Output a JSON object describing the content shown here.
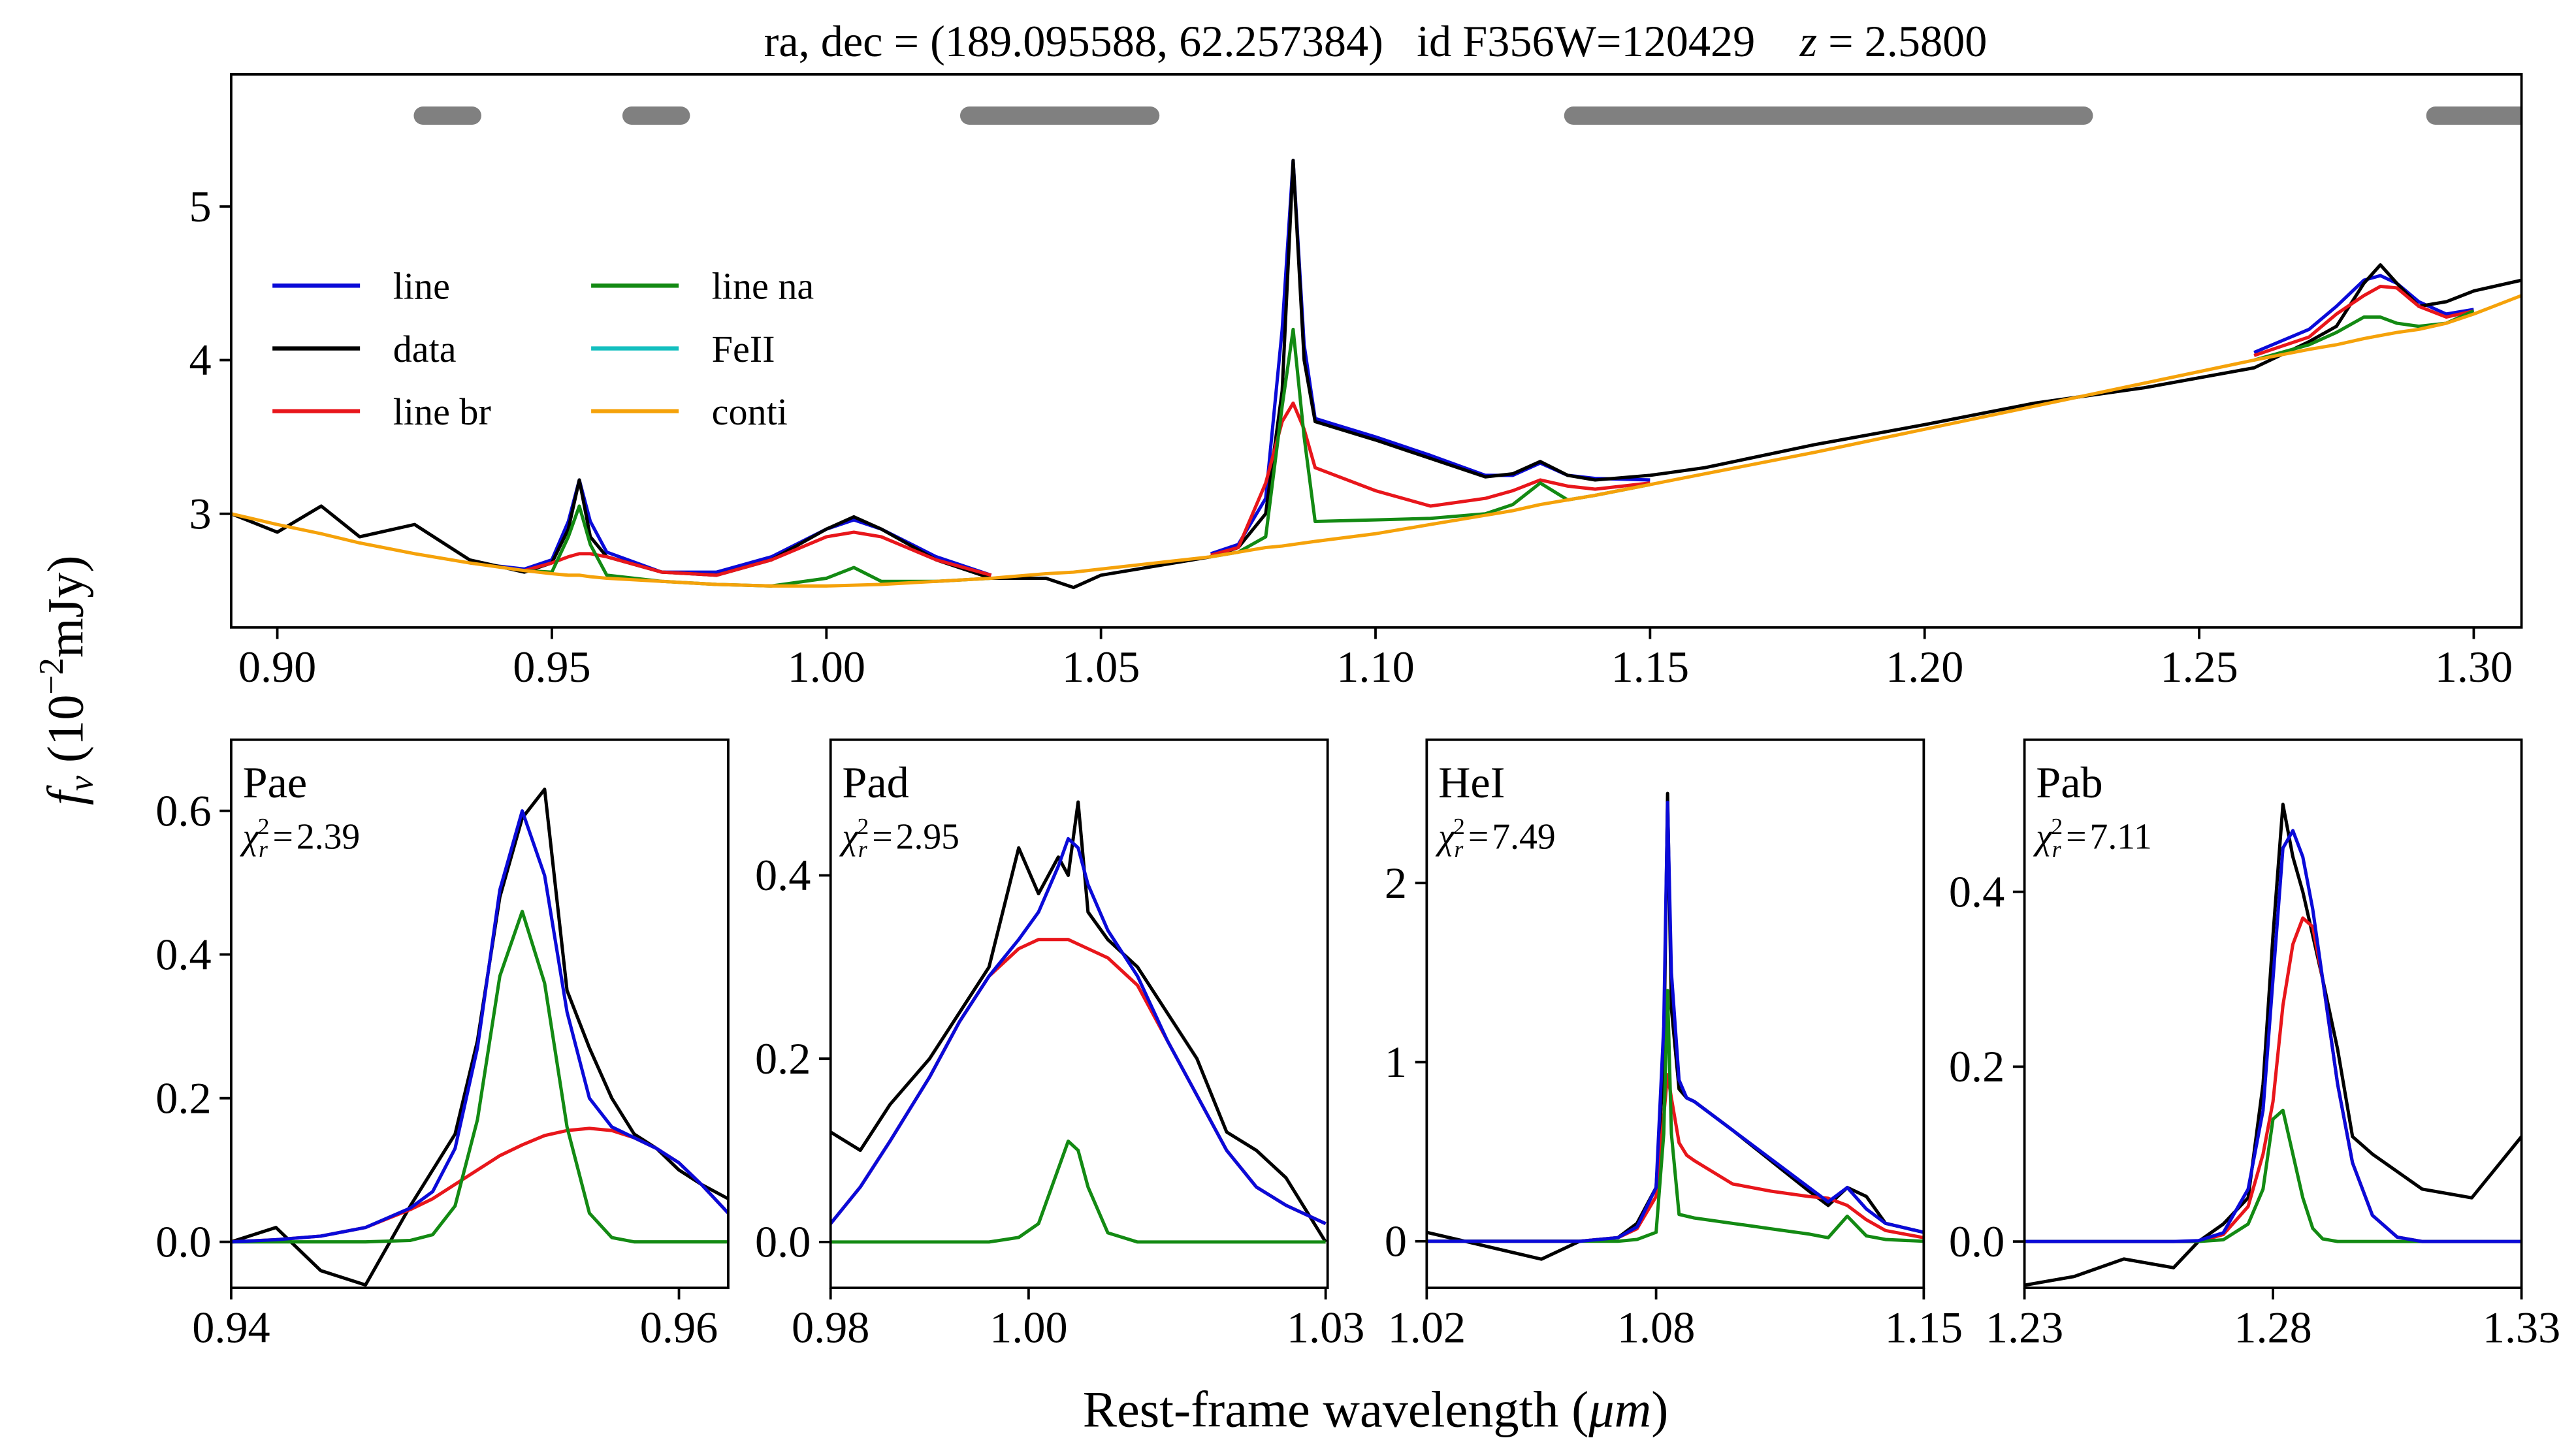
{
  "figure": {
    "title": [
      "ra, dec = (189.095588, 62.257384)   id F356W=120429    ",
      "z",
      " = 2.5800"
    ],
    "xlabel": [
      "Rest-frame wavelength (",
      "μm",
      ")"
    ],
    "ylabel": [
      "f",
      "ν",
      " (10",
      "−2",
      "mJy)"
    ]
  },
  "chart_data": [
    {
      "type": "line",
      "xlim": [
        0.8916,
        1.3087
      ],
      "ylim": [
        2.26,
        5.86
      ],
      "xticks": [
        {
          "value": 0.9,
          "label": "0.90"
        },
        0.95,
        {
          "value": 1.0,
          "label": "1.00"
        },
        1.05,
        {
          "value": 1.1,
          "label": "1.10"
        },
        1.15,
        {
          "value": 1.2,
          "label": "1.20"
        },
        1.25,
        {
          "value": 1.3,
          "label": "1.30"
        }
      ],
      "yticks": [
        3,
        4,
        5
      ],
      "legend": "upper left",
      "legend_ncol": 2,
      "windows": [
        [
          0.9265,
          0.9355
        ],
        [
          0.9645,
          0.9735
        ],
        [
          1.026,
          1.059
        ],
        [
          1.136,
          1.229
        ],
        [
          1.293,
          1.3087
        ]
      ],
      "window_color": "#808080",
      "x": [
        0.8916,
        0.9,
        0.908,
        0.915,
        0.925,
        0.935,
        0.945,
        0.95,
        0.953,
        0.955,
        0.957,
        0.96,
        0.97,
        0.98,
        0.99,
        1.0,
        1.005,
        1.01,
        1.02,
        1.03,
        1.04,
        1.045,
        1.05,
        1.06,
        1.07,
        1.075,
        1.08,
        1.083,
        1.085,
        1.087,
        1.089,
        1.1,
        1.11,
        1.12,
        1.125,
        1.13,
        1.135,
        1.14,
        1.15,
        1.16,
        1.18,
        1.2,
        1.22,
        1.24,
        1.26,
        1.27,
        1.275,
        1.28,
        1.283,
        1.286,
        1.29,
        1.295,
        1.3,
        1.3087
      ],
      "series": [
        {
          "name": "line",
          "color": "#0a0ad8",
          "values": [
            null,
            null,
            null,
            null,
            null,
            2.68,
            2.64,
            2.7,
            2.95,
            3.22,
            2.95,
            2.75,
            2.62,
            2.62,
            2.72,
            2.9,
            2.96,
            2.9,
            2.72,
            2.6,
            null,
            null,
            null,
            null,
            2.74,
            2.8,
            3.1,
            4.2,
            5.3,
            4.1,
            3.62,
            3.5,
            3.38,
            3.25,
            3.25,
            3.33,
            3.25,
            3.23,
            3.22,
            null,
            null,
            null,
            null,
            null,
            4.05,
            4.2,
            4.35,
            4.52,
            4.55,
            4.5,
            4.38,
            4.3,
            4.33,
            null
          ]
        },
        {
          "name": "data",
          "color": "#000000",
          "values": [
            3.0,
            2.88,
            3.05,
            2.85,
            2.93,
            2.7,
            2.62,
            2.68,
            2.9,
            3.22,
            2.85,
            2.72,
            2.62,
            2.6,
            2.7,
            2.9,
            2.98,
            2.9,
            2.7,
            2.58,
            2.58,
            2.52,
            2.6,
            2.66,
            2.72,
            2.78,
            3.0,
            3.8,
            5.3,
            4.0,
            3.6,
            3.48,
            3.36,
            3.24,
            3.26,
            3.34,
            3.25,
            3.22,
            3.25,
            3.3,
            3.45,
            3.58,
            3.72,
            3.82,
            3.95,
            4.12,
            4.22,
            4.5,
            4.62,
            4.5,
            4.35,
            4.38,
            4.45,
            4.52
          ]
        },
        {
          "name": "line br",
          "color": "#e8161b",
          "values": [
            null,
            null,
            null,
            null,
            null,
            null,
            2.63,
            2.68,
            2.72,
            2.74,
            2.74,
            2.72,
            2.62,
            2.6,
            2.7,
            2.85,
            2.88,
            2.85,
            2.7,
            2.6,
            null,
            null,
            null,
            null,
            2.73,
            2.78,
            3.2,
            3.6,
            3.72,
            3.55,
            3.3,
            3.15,
            3.05,
            3.1,
            3.15,
            3.22,
            3.18,
            3.16,
            3.2,
            null,
            null,
            null,
            null,
            null,
            4.03,
            4.15,
            4.3,
            4.42,
            4.48,
            4.47,
            4.35,
            4.28,
            4.32,
            null
          ]
        },
        {
          "name": "line na",
          "color": "#138a13",
          "values": [
            null,
            null,
            null,
            null,
            null,
            null,
            2.63,
            2.62,
            2.85,
            3.05,
            2.8,
            2.6,
            2.56,
            2.54,
            2.53,
            2.58,
            2.65,
            2.56,
            2.56,
            2.58,
            null,
            null,
            null,
            null,
            2.72,
            2.75,
            2.85,
            3.7,
            4.2,
            3.5,
            2.95,
            2.96,
            2.97,
            3.0,
            3.06,
            3.2,
            3.09,
            3.12,
            3.19,
            null,
            null,
            null,
            null,
            null,
            4.0,
            4.1,
            4.18,
            4.28,
            4.28,
            4.24,
            4.22,
            4.24,
            4.32,
            null
          ]
        },
        {
          "name": "FeII",
          "color": "#14bfbf"
        },
        {
          "name": "conti",
          "color": "#f5a20a",
          "values": [
            3.0,
            2.93,
            2.87,
            2.81,
            2.74,
            2.68,
            2.63,
            2.61,
            2.6,
            2.6,
            2.59,
            2.58,
            2.56,
            2.54,
            2.53,
            2.53,
            2.535,
            2.54,
            2.56,
            2.58,
            2.61,
            2.62,
            2.64,
            2.68,
            2.72,
            2.75,
            2.78,
            2.79,
            2.8,
            2.81,
            2.82,
            2.87,
            2.93,
            2.99,
            3.02,
            3.06,
            3.09,
            3.12,
            3.19,
            3.26,
            3.4,
            3.55,
            3.7,
            3.85,
            4.0,
            4.07,
            4.1,
            4.14,
            4.16,
            4.18,
            4.2,
            4.24,
            4.3,
            4.42
          ]
        }
      ]
    },
    {
      "type": "line",
      "label": "Pae",
      "chi2_symbol": "χ",
      "chi2_sub": "r",
      "chi2_sup": "2",
      "chi2_eq": "=",
      "chi2": 2.39,
      "xlim": [
        0.94,
        0.9622
      ],
      "ylim": [
        -0.064,
        0.699
      ],
      "xticks": [
        0.94,
        0.96
      ],
      "yticks": [
        {
          "value": 0,
          "label": "0.0"
        },
        0.2,
        0.4,
        0.6
      ],
      "x": [
        0.94,
        0.942,
        0.944,
        0.946,
        0.948,
        0.949,
        0.95,
        0.951,
        0.952,
        0.953,
        0.954,
        0.955,
        0.956,
        0.957,
        0.958,
        0.959,
        0.96,
        0.961,
        0.9622
      ],
      "series": [
        {
          "color": "#000000",
          "values": [
            0.0,
            0.02,
            -0.04,
            -0.06,
            0.05,
            0.1,
            0.15,
            0.28,
            0.48,
            0.59,
            0.63,
            0.35,
            0.27,
            0.2,
            0.15,
            0.13,
            0.1,
            0.08,
            0.06
          ]
        },
        {
          "color": "#e8161b",
          "values": [
            0,
            0.003,
            0.008,
            0.02,
            0.045,
            0.06,
            0.08,
            0.1,
            0.12,
            0.135,
            0.148,
            0.155,
            0.158,
            0.155,
            0.145,
            0.13,
            0.11,
            0.08,
            0.04
          ]
        },
        {
          "color": "#138a13",
          "values": [
            0,
            0,
            0,
            0,
            0.002,
            0.01,
            0.05,
            0.17,
            0.37,
            0.46,
            0.36,
            0.16,
            0.04,
            0.006,
            0,
            0,
            0,
            0,
            0
          ]
        },
        {
          "color": "#0a0ad8",
          "values": [
            0,
            0.003,
            0.008,
            0.02,
            0.047,
            0.07,
            0.13,
            0.27,
            0.49,
            0.6,
            0.51,
            0.32,
            0.2,
            0.16,
            0.145,
            0.13,
            0.11,
            0.08,
            0.04
          ]
        }
      ]
    },
    {
      "type": "line",
      "label": "Pad",
      "chi2_symbol": "χ",
      "chi2_sub": "r",
      "chi2_sup": "2",
      "chi2_eq": "=",
      "chi2": 2.95,
      "xlim": [
        0.98,
        1.0302
      ],
      "ylim": [
        -0.05,
        0.548
      ],
      "xticks": [
        0.98,
        {
          "value": 1.0,
          "label": "1.00"
        },
        1.03
      ],
      "yticks": [
        {
          "value": 0,
          "label": "0.0"
        },
        0.2,
        0.4
      ],
      "x": [
        0.98,
        0.983,
        0.986,
        0.99,
        0.993,
        0.996,
        0.999,
        1.001,
        1.003,
        1.004,
        1.005,
        1.006,
        1.008,
        1.011,
        1.014,
        1.017,
        1.02,
        1.023,
        1.026,
        1.03
      ],
      "series": [
        {
          "color": "#000000",
          "values": [
            0.12,
            0.1,
            0.15,
            0.2,
            0.25,
            0.3,
            0.43,
            0.38,
            0.42,
            0.4,
            0.48,
            0.36,
            0.33,
            0.3,
            0.25,
            0.2,
            0.12,
            0.1,
            0.07,
            0.0
          ]
        },
        {
          "color": "#e8161b",
          "values": [
            0.02,
            0.06,
            0.11,
            0.18,
            0.24,
            0.29,
            0.32,
            0.33,
            0.33,
            0.33,
            0.325,
            0.32,
            0.31,
            0.28,
            0.22,
            0.16,
            0.1,
            0.06,
            0.04,
            0.02
          ]
        },
        {
          "color": "#138a13",
          "values": [
            0,
            0,
            0,
            0,
            0,
            0,
            0.005,
            0.02,
            0.08,
            0.11,
            0.1,
            0.06,
            0.01,
            0,
            0,
            0,
            0,
            0,
            0,
            0
          ]
        },
        {
          "color": "#0a0ad8",
          "values": [
            0.02,
            0.06,
            0.11,
            0.18,
            0.24,
            0.29,
            0.33,
            0.36,
            0.41,
            0.44,
            0.43,
            0.39,
            0.34,
            0.29,
            0.22,
            0.16,
            0.1,
            0.06,
            0.04,
            0.02
          ]
        }
      ]
    },
    {
      "type": "line",
      "label": "HeI",
      "chi2_symbol": "χ",
      "chi2_sub": "r",
      "chi2_sup": "2",
      "chi2_eq": "=",
      "chi2": 7.49,
      "xlim": [
        1.02,
        1.15
      ],
      "ylim": [
        -0.26,
        2.8
      ],
      "xticks": [
        1.02,
        1.08,
        1.15
      ],
      "yticks": [
        0,
        1,
        2
      ],
      "x": [
        1.02,
        1.03,
        1.04,
        1.05,
        1.06,
        1.07,
        1.075,
        1.08,
        1.082,
        1.083,
        1.084,
        1.086,
        1.088,
        1.09,
        1.1,
        1.11,
        1.12,
        1.125,
        1.13,
        1.135,
        1.14,
        1.15
      ],
      "series": [
        {
          "color": "#000000",
          "values": [
            0.05,
            0.0,
            -0.05,
            -0.1,
            0,
            0.02,
            0.1,
            0.3,
            1.0,
            2.5,
            1.3,
            0.85,
            0.8,
            0.78,
            0.62,
            0.45,
            0.28,
            0.2,
            0.3,
            0.25,
            0.1,
            0.05
          ]
        },
        {
          "color": "#e8161b",
          "values": [
            0,
            0,
            0,
            0,
            0,
            0.02,
            0.07,
            0.25,
            0.7,
            0.93,
            0.8,
            0.55,
            0.48,
            0.45,
            0.32,
            0.28,
            0.25,
            0.24,
            0.2,
            0.12,
            0.06,
            0.02
          ]
        },
        {
          "color": "#138a13",
          "values": [
            0,
            0,
            0,
            0,
            0,
            0,
            0.01,
            0.05,
            0.6,
            1.4,
            0.6,
            0.15,
            0.14,
            0.13,
            0.1,
            0.07,
            0.04,
            0.02,
            0.14,
            0.03,
            0.01,
            0
          ]
        },
        {
          "color": "#0a0ad8",
          "values": [
            0,
            0,
            0,
            0,
            0,
            0.02,
            0.08,
            0.3,
            1.2,
            2.45,
            1.5,
            0.9,
            0.8,
            0.78,
            0.62,
            0.46,
            0.3,
            0.22,
            0.3,
            0.18,
            0.1,
            0.05
          ]
        }
      ]
    },
    {
      "type": "line",
      "label": "Pab",
      "chi2_symbol": "χ",
      "chi2_sub": "r",
      "chi2_sup": "2",
      "chi2_eq": "=",
      "chi2": 7.11,
      "xlim": [
        1.23,
        1.33
      ],
      "ylim": [
        -0.053,
        0.574
      ],
      "xticks": [
        1.23,
        1.28,
        1.33
      ],
      "yticks": [
        {
          "value": 0,
          "label": "0.0"
        },
        0.2,
        0.4
      ],
      "x": [
        1.23,
        1.24,
        1.25,
        1.26,
        1.265,
        1.27,
        1.275,
        1.278,
        1.28,
        1.282,
        1.284,
        1.286,
        1.288,
        1.29,
        1.293,
        1.296,
        1.3,
        1.305,
        1.31,
        1.32,
        1.33
      ],
      "series": [
        {
          "color": "#000000",
          "values": [
            -0.05,
            -0.04,
            -0.02,
            -0.03,
            0,
            0.02,
            0.05,
            0.18,
            0.35,
            0.5,
            0.44,
            0.4,
            0.35,
            0.3,
            0.22,
            0.12,
            0.1,
            0.08,
            0.06,
            0.05,
            0.12
          ]
        },
        {
          "color": "#e8161b",
          "values": [
            0,
            0,
            0,
            0,
            0,
            0.008,
            0.04,
            0.1,
            0.16,
            0.27,
            0.34,
            0.37,
            0.36,
            0.3,
            0.18,
            0.09,
            0.03,
            0.005,
            0,
            0,
            0
          ]
        },
        {
          "color": "#138a13",
          "values": [
            0,
            0,
            0,
            0,
            0,
            0.002,
            0.02,
            0.06,
            0.14,
            0.15,
            0.1,
            0.05,
            0.015,
            0.003,
            0,
            0,
            0,
            0,
            0,
            0,
            0
          ]
        },
        {
          "color": "#0a0ad8",
          "values": [
            0,
            0,
            0,
            0,
            0.001,
            0.01,
            0.06,
            0.15,
            0.3,
            0.45,
            0.47,
            0.44,
            0.38,
            0.3,
            0.18,
            0.09,
            0.03,
            0.005,
            0,
            0,
            0
          ]
        }
      ]
    }
  ]
}
